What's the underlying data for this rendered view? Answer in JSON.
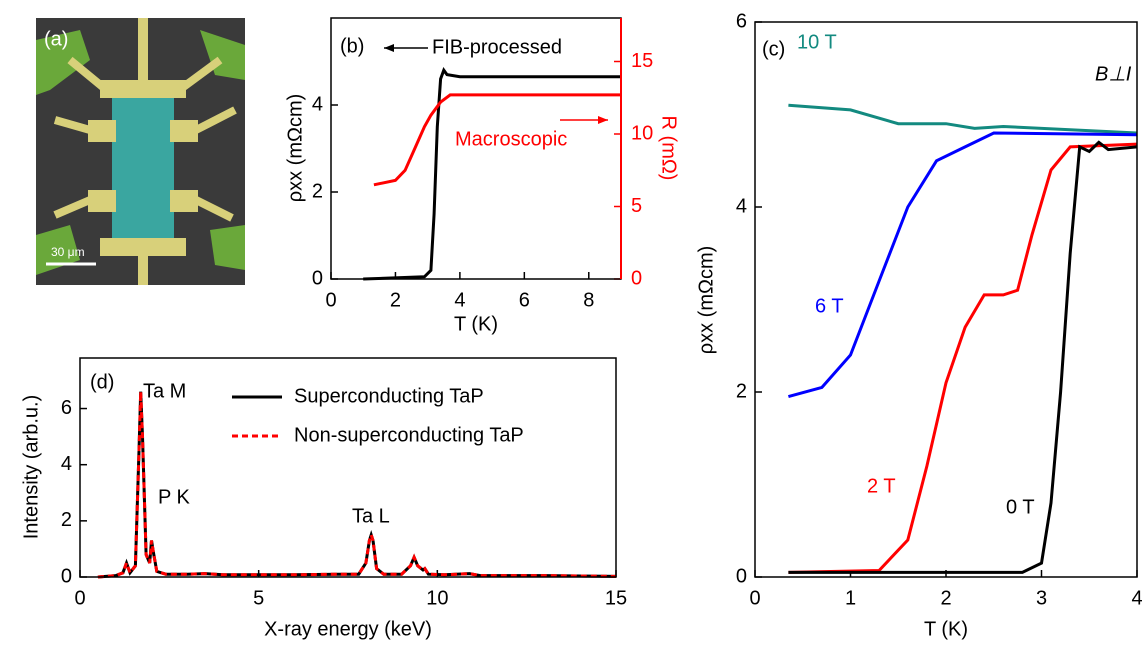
{
  "image_panel": {
    "label": "(a)",
    "scale_bar": "30 μm"
  },
  "chart_data": [
    {
      "type": "line",
      "label": "(b)",
      "xlabel": "T (K)",
      "ylabel": "ρxx (mΩcm)",
      "y2label": "R (mΩ)",
      "annotations": [
        "FIB-processed",
        "Macroscopic"
      ],
      "xlim": [
        0,
        9
      ],
      "xticks": [
        0,
        2,
        4,
        6,
        8
      ],
      "ylim": [
        0,
        6
      ],
      "yticks": [
        0,
        2,
        4
      ],
      "y2lim": [
        0,
        18
      ],
      "y2ticks": [
        0,
        5,
        10,
        15
      ],
      "series": [
        {
          "name": "FIB-processed",
          "color": "#000000",
          "x": [
            1.0,
            2.9,
            3.1,
            3.2,
            3.3,
            3.4,
            3.5,
            3.6,
            4.0,
            9.0
          ],
          "values": [
            0,
            0.05,
            0.2,
            1.5,
            3.5,
            4.6,
            4.8,
            4.7,
            4.65,
            4.65
          ]
        },
        {
          "name": "Macroscopic",
          "color": "#ff0000",
          "axis": "y2",
          "x": [
            1.33,
            2.0,
            2.3,
            2.6,
            2.9,
            3.1,
            3.4,
            3.7,
            9.0
          ],
          "values": [
            6.5,
            6.8,
            7.5,
            9.0,
            10.5,
            11.3,
            12.2,
            12.7,
            12.7
          ]
        }
      ]
    },
    {
      "type": "line",
      "label": "(c)",
      "xlabel": "T (K)",
      "ylabel": "ρxx (mΩcm)",
      "annotations": [
        "B⊥I"
      ],
      "xlim": [
        0,
        4
      ],
      "xticks": [
        0,
        1,
        2,
        3,
        4
      ],
      "ylim": [
        0,
        6
      ],
      "yticks": [
        0,
        2,
        4,
        6
      ],
      "series": [
        {
          "name": "10 T",
          "color": "#138a80",
          "x": [
            0.35,
            1.0,
            1.5,
            2.0,
            2.3,
            2.6,
            4.0
          ],
          "values": [
            5.1,
            5.05,
            4.9,
            4.9,
            4.85,
            4.87,
            4.8
          ]
        },
        {
          "name": "6 T",
          "color": "#0000ff",
          "x": [
            0.35,
            0.7,
            1.0,
            1.3,
            1.6,
            1.9,
            2.2,
            2.5,
            4.0
          ],
          "values": [
            1.95,
            2.05,
            2.4,
            3.2,
            4.0,
            4.5,
            4.65,
            4.8,
            4.78
          ]
        },
        {
          "name": "2 T",
          "color": "#ff0000",
          "x": [
            0.35,
            1.3,
            1.6,
            1.8,
            2.0,
            2.2,
            2.4,
            2.6,
            2.75,
            2.9,
            3.1,
            3.3,
            4.0
          ],
          "values": [
            0.05,
            0.07,
            0.4,
            1.2,
            2.1,
            2.7,
            3.05,
            3.05,
            3.1,
            3.7,
            4.4,
            4.65,
            4.68
          ]
        },
        {
          "name": "0 T",
          "color": "#000000",
          "x": [
            0.35,
            2.8,
            3.0,
            3.1,
            3.2,
            3.3,
            3.4,
            3.5,
            3.6,
            3.7,
            4.0
          ],
          "values": [
            0.05,
            0.05,
            0.15,
            0.8,
            2.0,
            3.5,
            4.65,
            4.6,
            4.7,
            4.62,
            4.65
          ]
        }
      ]
    },
    {
      "type": "line",
      "label": "(d)",
      "xlabel": "X-ray energy (keV)",
      "ylabel": "Intensity (arb.u.)",
      "annotations": [
        "Ta M",
        "P K",
        "Ta L"
      ],
      "xlim": [
        0,
        15
      ],
      "xticks": [
        0,
        5,
        10,
        15
      ],
      "ylim": [
        0,
        7.8
      ],
      "yticks": [
        0,
        2,
        4,
        6
      ],
      "legend": "top-right",
      "series": [
        {
          "name": "Superconducting TaP",
          "color": "#000000",
          "x": [
            0.5,
            1.0,
            1.2,
            1.3,
            1.4,
            1.55,
            1.65,
            1.7,
            1.75,
            1.85,
            1.95,
            2.0,
            2.05,
            2.15,
            2.4,
            3.0,
            3.5,
            4.0,
            6,
            7.2,
            7.8,
            8.0,
            8.1,
            8.15,
            8.2,
            8.3,
            8.5,
            9.0,
            9.25,
            9.35,
            9.45,
            9.6,
            9.65,
            9.75,
            10.2,
            10.9,
            11.2,
            13,
            15
          ],
          "values": [
            0,
            0.05,
            0.15,
            0.5,
            0.15,
            0.4,
            4.5,
            6.6,
            5.0,
            0.8,
            0.5,
            1.3,
            0.9,
            0.2,
            0.1,
            0.1,
            0.12,
            0.08,
            0.08,
            0.1,
            0.1,
            0.5,
            1.3,
            1.5,
            1.3,
            0.3,
            0.1,
            0.1,
            0.4,
            0.7,
            0.4,
            0.25,
            0.3,
            0.1,
            0.08,
            0.12,
            0.05,
            0.05,
            0.02
          ]
        },
        {
          "name": "Non-superconducting TaP",
          "color": "#ff0000",
          "dashed": true,
          "x": [
            0.5,
            1.0,
            1.2,
            1.3,
            1.4,
            1.55,
            1.65,
            1.7,
            1.75,
            1.85,
            1.95,
            2.0,
            2.05,
            2.15,
            2.4,
            3.0,
            3.5,
            4.0,
            6,
            7.2,
            7.8,
            8.0,
            8.1,
            8.15,
            8.2,
            8.3,
            8.5,
            9.0,
            9.25,
            9.35,
            9.45,
            9.6,
            9.65,
            9.75,
            10.2,
            10.9,
            11.2,
            13,
            15
          ],
          "values": [
            0,
            0.05,
            0.15,
            0.5,
            0.15,
            0.4,
            4.5,
            6.6,
            5.0,
            0.8,
            0.5,
            1.3,
            0.9,
            0.2,
            0.1,
            0.1,
            0.12,
            0.08,
            0.08,
            0.1,
            0.1,
            0.5,
            1.3,
            1.5,
            1.3,
            0.3,
            0.1,
            0.1,
            0.4,
            0.7,
            0.4,
            0.25,
            0.3,
            0.1,
            0.08,
            0.12,
            0.05,
            0.05,
            0.02
          ]
        }
      ]
    }
  ]
}
